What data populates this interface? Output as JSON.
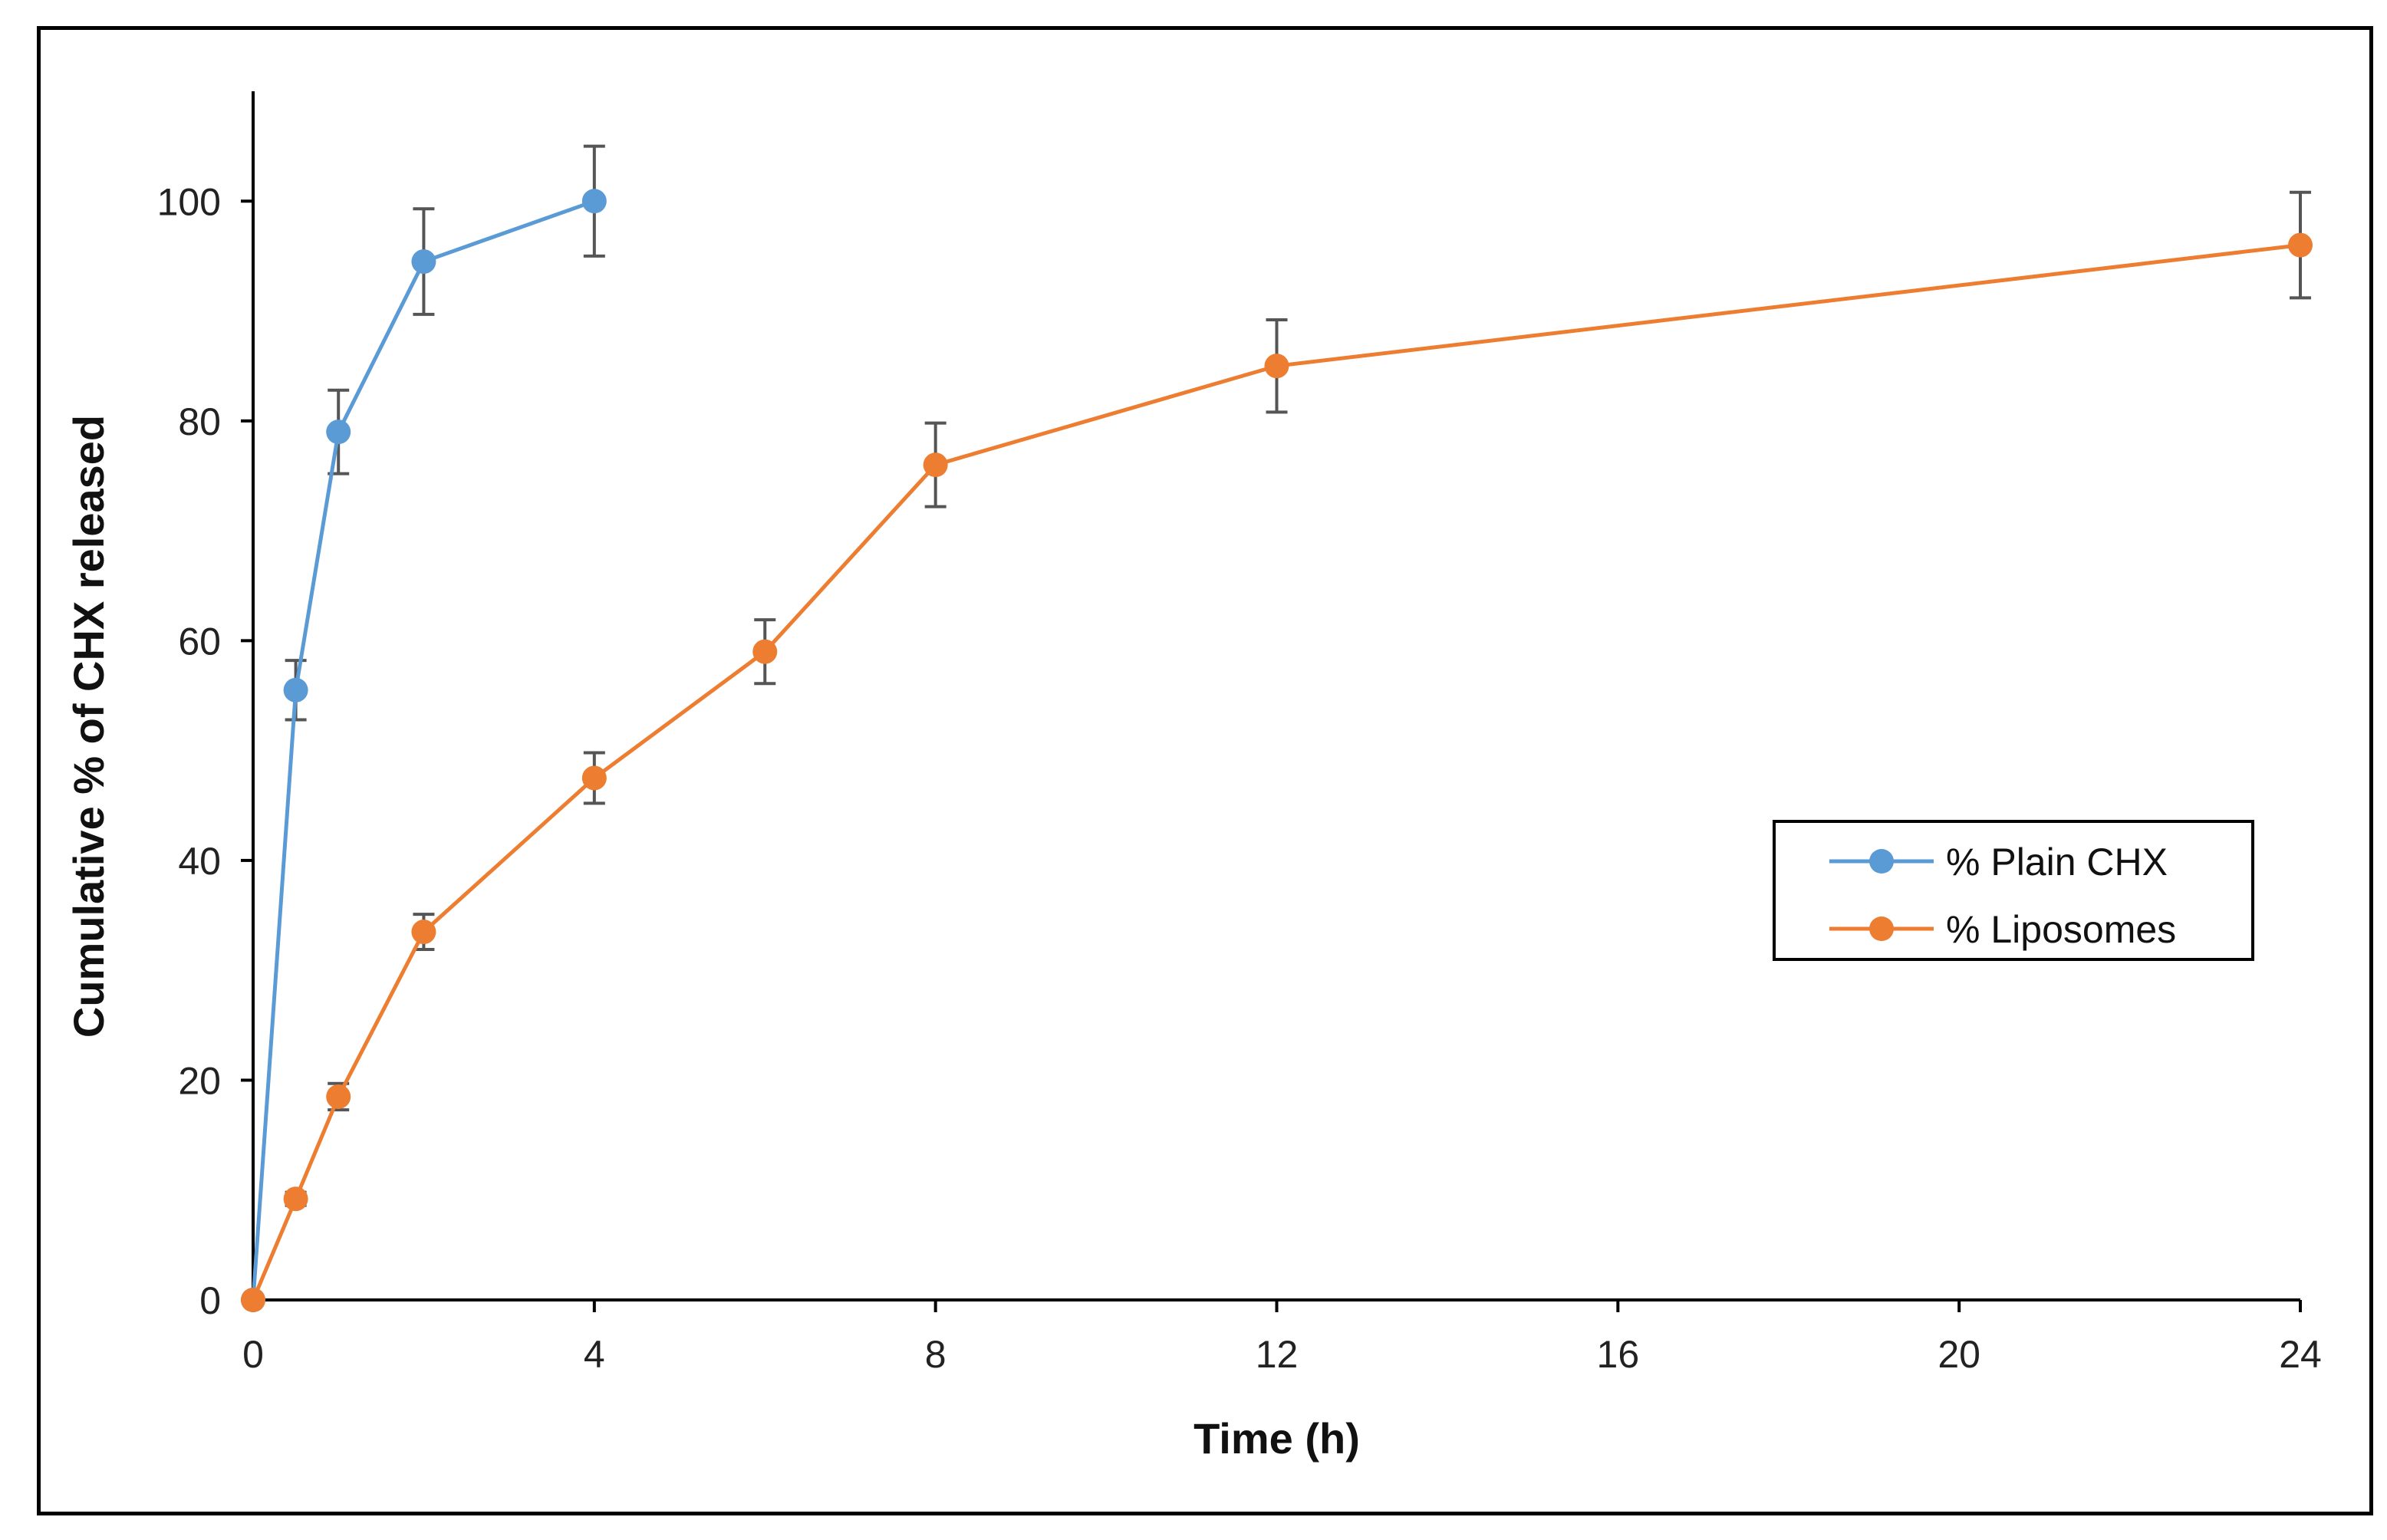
{
  "chart_data": {
    "type": "line",
    "title": "",
    "xlabel": "Time (h)",
    "ylabel": "Cumulative % of CHX released",
    "xlim": [
      0,
      24
    ],
    "ylim": [
      0,
      110
    ],
    "xticks": [
      0,
      4,
      8,
      12,
      16,
      20,
      24
    ],
    "yticks": [
      0,
      20,
      40,
      60,
      80,
      100
    ],
    "grid": false,
    "legend_position": "right",
    "series": [
      {
        "name": "% Plain CHX",
        "color": "#5B9BD5",
        "x": [
          0,
          0.5,
          1,
          2,
          4
        ],
        "y": [
          0,
          55.5,
          79,
          94.5,
          100
        ],
        "error": [
          0,
          2.7,
          3.8,
          4.8,
          5
        ]
      },
      {
        "name": "% Liposomes",
        "color": "#ED7D31",
        "x": [
          0,
          0.5,
          1,
          2,
          4,
          6,
          8,
          12,
          24
        ],
        "y": [
          0,
          9.2,
          18.5,
          33.5,
          47.5,
          59,
          76,
          85,
          96
        ],
        "error": [
          0,
          0.6,
          1.2,
          1.6,
          2.3,
          2.9,
          3.8,
          4.2,
          4.8
        ]
      }
    ],
    "error_bar_color": "#555555"
  }
}
